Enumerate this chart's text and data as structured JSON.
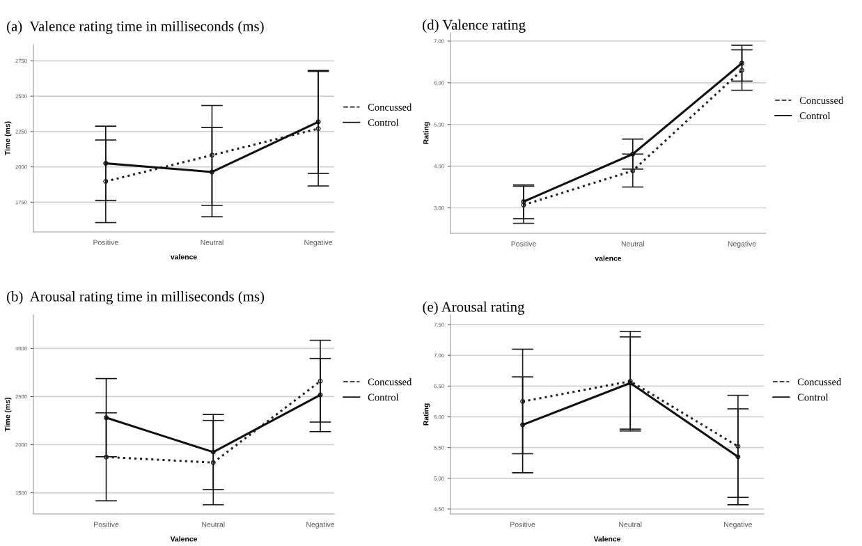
{
  "chart_data": [
    {
      "type": "line",
      "title": "(a)  Valence rating time in milliseconds (ms)",
      "xlabel": "valence",
      "ylabel": "Time (ms)",
      "categories": [
        "Positive",
        "Neutral",
        "Negative"
      ],
      "ylim": [
        1540,
        2865
      ],
      "yticks": [
        1750,
        2000,
        2250,
        2500,
        2750
      ],
      "grid": "y",
      "legend": "right",
      "marker": "circle",
      "series": [
        {
          "name": "Concussed",
          "color": "#222222",
          "line_style": "dotted",
          "values": [
            1897,
            2083,
            2270
          ],
          "errors": [
            [
              1606,
              2190
            ],
            [
              1728,
              2434
            ],
            [
              1865,
              2675
            ]
          ]
        },
        {
          "name": "Control",
          "color": "#111111",
          "line_style": "solid",
          "values": [
            2025,
            1964,
            2318
          ],
          "errors": [
            [
              1763,
              2288
            ],
            [
              1647,
              2278
            ],
            [
              1954,
              2682
            ]
          ]
        }
      ]
    },
    {
      "type": "line",
      "title": "(d) Valence rating",
      "xlabel": "valence",
      "ylabel": "Rating",
      "categories": [
        "Positive",
        "Neutral",
        "Negative"
      ],
      "ylim": [
        2.39,
        7.2
      ],
      "yticks": [
        {
          "value": 3,
          "label": "3.00"
        },
        {
          "value": 4,
          "label": "4.00"
        },
        {
          "value": 5,
          "label": "5.00"
        },
        {
          "value": 6,
          "label": "6.00"
        },
        {
          "value": 7,
          "label": "7.00"
        }
      ],
      "grid": "y",
      "legend": "right",
      "marker": "circle",
      "series": [
        {
          "name": "Concussed",
          "color": "#222222",
          "line_style": "dotted",
          "values": [
            3.07,
            3.89,
            6.3
          ],
          "errors": [
            [
              2.63,
              3.52
            ],
            [
              3.5,
              4.29
            ],
            [
              5.82,
              6.79
            ]
          ]
        },
        {
          "name": "Control",
          "color": "#111111",
          "line_style": "solid",
          "values": [
            3.15,
            4.29,
            6.47
          ],
          "errors": [
            [
              2.74,
              3.55
            ],
            [
              3.93,
              4.65
            ],
            [
              6.04,
              6.9
            ]
          ]
        }
      ]
    },
    {
      "type": "line",
      "title": "(b)  Arousal rating time in milliseconds (ms)",
      "xlabel": "Valence",
      "ylabel": "Time (ms)",
      "categories": [
        "Positive",
        "Neutral",
        "Negative"
      ],
      "ylim": [
        1280,
        3350
      ],
      "yticks": [
        1500,
        2000,
        2500,
        3000
      ],
      "grid": "y",
      "legend": "right",
      "marker": "circle",
      "series": [
        {
          "name": "Concussed",
          "color": "#222222",
          "line_style": "dotted",
          "values": [
            1872,
            1814,
            2660
          ],
          "errors": [
            [
              1417,
              2331
            ],
            [
              1376,
              2252
            ],
            [
              2235,
              3085
            ]
          ]
        },
        {
          "name": "Control",
          "color": "#111111",
          "line_style": "solid",
          "values": [
            2281,
            1923,
            2517
          ],
          "errors": [
            [
              1875,
              2687
            ],
            [
              1533,
              2314
            ],
            [
              2136,
              2896
            ]
          ]
        }
      ]
    },
    {
      "type": "line",
      "title": "(e) Arousal rating",
      "xlabel": "Valence",
      "ylabel": "Rating",
      "categories": [
        "Positive",
        "Neutral",
        "Negative"
      ],
      "ylim": [
        4.42,
        7.66
      ],
      "yticks": [
        {
          "value": 4.5,
          "label": "4.50"
        },
        {
          "value": 5,
          "label": "5.00"
        },
        {
          "value": 5.5,
          "label": "5.50"
        },
        {
          "value": 6,
          "label": "6.00"
        },
        {
          "value": 6.5,
          "label": "6.50"
        },
        {
          "value": 7,
          "label": "7.00"
        },
        {
          "value": 7.5,
          "label": "7.50"
        }
      ],
      "grid": "y",
      "legend": "right",
      "marker": "circle",
      "series": [
        {
          "name": "Concussed",
          "color": "#222222",
          "line_style": "dotted",
          "values": [
            6.25,
            6.58,
            5.52
          ],
          "errors": [
            [
              5.4,
              7.1
            ],
            [
              5.77,
              7.39
            ],
            [
              4.69,
              6.35
            ]
          ]
        },
        {
          "name": "Control",
          "color": "#111111",
          "line_style": "solid",
          "values": [
            5.87,
            6.55,
            5.35
          ],
          "errors": [
            [
              5.09,
              6.65
            ],
            [
              5.8,
              7.3
            ],
            [
              4.57,
              6.13
            ]
          ]
        }
      ]
    }
  ]
}
